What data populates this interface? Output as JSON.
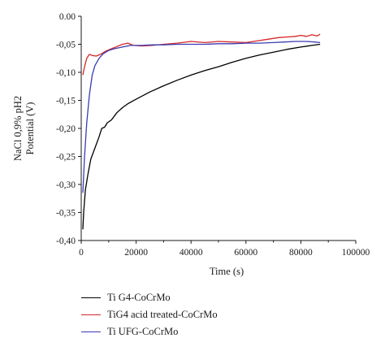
{
  "chart_data": {
    "type": "line",
    "title": "",
    "xlabel": "Time (s)",
    "ylabel_line1": "NaCl 0,9% pH2",
    "ylabel_line2": "Potential (V)",
    "xlim": [
      0,
      100000
    ],
    "ylim": [
      -0.4,
      0.0
    ],
    "x_ticks": [
      0,
      20000,
      40000,
      60000,
      80000,
      100000
    ],
    "x_tick_labels": [
      "0",
      "20000",
      "40000",
      "60000",
      "80000",
      "100000"
    ],
    "y_ticks": [
      0.0,
      -0.05,
      -0.1,
      -0.15,
      -0.2,
      -0.25,
      -0.3,
      -0.35,
      -0.4
    ],
    "y_tick_labels": [
      "0.00",
      "-0,05",
      "-0,10",
      "-0,15",
      "-0,20",
      "-0,25",
      "-0,30",
      "-0,35",
      "-0,40"
    ],
    "grid": false,
    "legend_position": "bottom",
    "series": [
      {
        "name": "Ti G4-CoCrMo",
        "color": "#000000",
        "points": [
          [
            600,
            -0.38
          ],
          [
            900,
            -0.35
          ],
          [
            1500,
            -0.31
          ],
          [
            2500,
            -0.28
          ],
          [
            3500,
            -0.255
          ],
          [
            5000,
            -0.235
          ],
          [
            6500,
            -0.215
          ],
          [
            7500,
            -0.2
          ],
          [
            8500,
            -0.198
          ],
          [
            9500,
            -0.19
          ],
          [
            11000,
            -0.185
          ],
          [
            13000,
            -0.172
          ],
          [
            15000,
            -0.163
          ],
          [
            17000,
            -0.156
          ],
          [
            20000,
            -0.148
          ],
          [
            25000,
            -0.135
          ],
          [
            30000,
            -0.124
          ],
          [
            35000,
            -0.114
          ],
          [
            40000,
            -0.105
          ],
          [
            45000,
            -0.097
          ],
          [
            50000,
            -0.09
          ],
          [
            55000,
            -0.082
          ],
          [
            60000,
            -0.075
          ],
          [
            65000,
            -0.069
          ],
          [
            70000,
            -0.064
          ],
          [
            75000,
            -0.059
          ],
          [
            80000,
            -0.055
          ],
          [
            84000,
            -0.052
          ],
          [
            87000,
            -0.05
          ]
        ]
      },
      {
        "name": "TiG4 acid treated-CoCrMo",
        "color": "#d62728",
        "points": [
          [
            600,
            -0.105
          ],
          [
            1200,
            -0.09
          ],
          [
            2000,
            -0.075
          ],
          [
            3000,
            -0.068
          ],
          [
            4000,
            -0.07
          ],
          [
            5500,
            -0.071
          ],
          [
            7000,
            -0.068
          ],
          [
            9000,
            -0.062
          ],
          [
            11000,
            -0.058
          ],
          [
            13000,
            -0.054
          ],
          [
            15000,
            -0.05
          ],
          [
            17000,
            -0.048
          ],
          [
            19000,
            -0.052
          ],
          [
            22000,
            -0.053
          ],
          [
            26000,
            -0.052
          ],
          [
            30000,
            -0.05
          ],
          [
            35000,
            -0.048
          ],
          [
            40000,
            -0.045
          ],
          [
            45000,
            -0.047
          ],
          [
            50000,
            -0.045
          ],
          [
            55000,
            -0.046
          ],
          [
            60000,
            -0.047
          ],
          [
            64000,
            -0.044
          ],
          [
            68000,
            -0.041
          ],
          [
            72000,
            -0.038
          ],
          [
            75000,
            -0.037
          ],
          [
            78000,
            -0.036
          ],
          [
            80000,
            -0.034
          ],
          [
            82000,
            -0.036
          ],
          [
            84000,
            -0.033
          ],
          [
            86000,
            -0.035
          ],
          [
            87000,
            -0.032
          ]
        ]
      },
      {
        "name": "Ti UFG-CoCrMo",
        "color": "#3b3bb3",
        "points": [
          [
            600,
            -0.315
          ],
          [
            1200,
            -0.25
          ],
          [
            2000,
            -0.19
          ],
          [
            3000,
            -0.14
          ],
          [
            4000,
            -0.105
          ],
          [
            5000,
            -0.088
          ],
          [
            6500,
            -0.075
          ],
          [
            8000,
            -0.067
          ],
          [
            10000,
            -0.061
          ],
          [
            12000,
            -0.058
          ],
          [
            15000,
            -0.055
          ],
          [
            18000,
            -0.052
          ],
          [
            22000,
            -0.052
          ],
          [
            26000,
            -0.051
          ],
          [
            30000,
            -0.051
          ],
          [
            35000,
            -0.05
          ],
          [
            40000,
            -0.05
          ],
          [
            45000,
            -0.05
          ],
          [
            50000,
            -0.049
          ],
          [
            55000,
            -0.049
          ],
          [
            60000,
            -0.048
          ],
          [
            65000,
            -0.048
          ],
          [
            70000,
            -0.047
          ],
          [
            74000,
            -0.046
          ],
          [
            78000,
            -0.045
          ],
          [
            82000,
            -0.045
          ],
          [
            85000,
            -0.046
          ],
          [
            87000,
            -0.047
          ]
        ]
      }
    ]
  }
}
